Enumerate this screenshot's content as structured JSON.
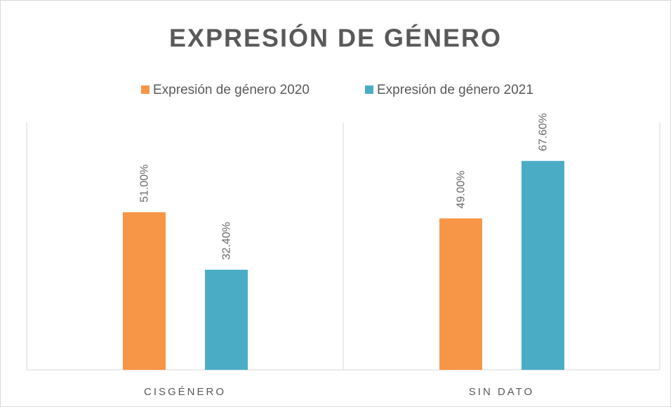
{
  "chart_data": {
    "type": "bar",
    "title": "EXPRESIÓN DE GÉNERO",
    "categories": [
      "CISGÉNERO",
      "SIN DATO"
    ],
    "series": [
      {
        "name": "Expresión de género 2020",
        "color": "#f79646",
        "values": [
          51,
          49
        ],
        "value_labels": [
          "51.00%",
          "49.00%"
        ]
      },
      {
        "name": "Expresión de género 2021",
        "color": "#4bacc6",
        "values": [
          32.4,
          67.6
        ],
        "value_labels": [
          "32.40%",
          "67.60%"
        ]
      }
    ],
    "ylim": [
      0,
      80
    ],
    "legend": "top"
  }
}
